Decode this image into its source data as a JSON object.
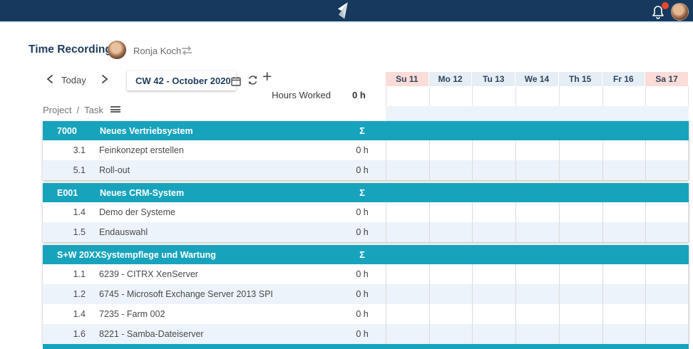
{
  "colors": {
    "topbar_bg": "#16395D",
    "topbar_border": "#D9E7F1",
    "teal": "#18A3BD",
    "row_alt": "#ECF3FA",
    "weekend_bg": "#FBDCD8",
    "weekday_bg": "#E4EEF4",
    "day_text": "#30455C",
    "navy_text": "#1E3C5C",
    "badge_red": "#E8472B"
  },
  "header": {
    "title": "Time Recording",
    "user_name": "Ronja Koch"
  },
  "toolbar": {
    "today_label": "Today",
    "week_label": "CW 42 - October 2020"
  },
  "summary": {
    "hours_worked_label": "Hours Worked",
    "hours_worked_value": "0 h"
  },
  "table_labels": {
    "project": "Project",
    "separator": "/",
    "task": "Task",
    "sum_symbol": "Σ"
  },
  "calendar": {
    "days": [
      {
        "label": "Su 11",
        "weekend": true
      },
      {
        "label": "Mo 12",
        "weekend": false
      },
      {
        "label": "Tu 13",
        "weekend": false
      },
      {
        "label": "We 14",
        "weekend": false
      },
      {
        "label": "Th 15",
        "weekend": false
      },
      {
        "label": "Fr 16",
        "weekend": false
      },
      {
        "label": "Sa 17",
        "weekend": true
      }
    ]
  },
  "table": {
    "sections": [
      {
        "code": "7000",
        "title": "Neues Vertriebsystem",
        "tasks": [
          {
            "number": "3.1",
            "name": "Feinkonzept erstellen",
            "total": "0 h"
          },
          {
            "number": "5.1",
            "name": "Roll-out",
            "total": "0 h"
          }
        ]
      },
      {
        "code": "E001",
        "title": "Neues CRM-System",
        "tasks": [
          {
            "number": "1.4",
            "name": "Demo der Systeme",
            "total": "0 h"
          },
          {
            "number": "1.5",
            "name": "Endauswahl",
            "total": "0 h"
          }
        ]
      },
      {
        "code": "S+W 20XX",
        "title": "Systempflege und Wartung",
        "tasks": [
          {
            "number": "1.1",
            "name": "6239 - CITRX XenServer",
            "total": "0 h"
          },
          {
            "number": "1.2",
            "name": "6745 - Microsoft Exchange Server 2013 SPI",
            "total": "0 h"
          },
          {
            "number": "1.4",
            "name": "7235 - Farm 002",
            "total": "0 h"
          },
          {
            "number": "1.6",
            "name": "8221 - Samba-Dateiserver",
            "total": "0 h"
          }
        ]
      }
    ]
  }
}
